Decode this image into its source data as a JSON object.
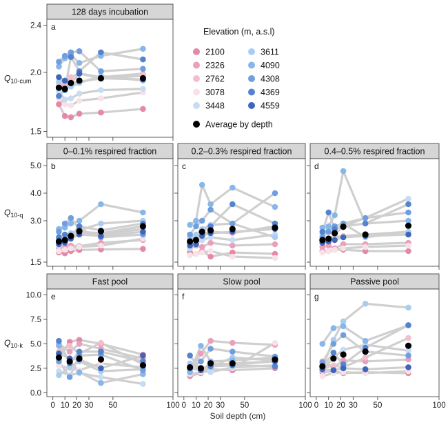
{
  "figure": {
    "xlabel": "Soil depth (cm)",
    "x_ticks": [
      0,
      10,
      20,
      30,
      50,
      100
    ],
    "line_color": "#cfcfcf",
    "average_color": "#000000",
    "strip_color": "#d6d6d6"
  },
  "legend": {
    "title": "Elevation (m, a.s.l)",
    "entries": [
      {
        "label": "2100",
        "color": "#e48aa8"
      },
      {
        "label": "2326",
        "color": "#eb9fba"
      },
      {
        "label": "2762",
        "color": "#f3bfcd"
      },
      {
        "label": "3078",
        "color": "#f8e2e8"
      },
      {
        "label": "3448",
        "color": "#c6dcf4"
      },
      {
        "label": "3611",
        "color": "#a9cdf2"
      },
      {
        "label": "4090",
        "color": "#86b6ea"
      },
      {
        "label": "4308",
        "color": "#6f9fe0"
      },
      {
        "label": "4369",
        "color": "#5483d0"
      },
      {
        "label": "4559",
        "color": "#3e66bd"
      }
    ],
    "average_label": "Average by depth"
  },
  "chart_data": [
    {
      "panel": "a",
      "type": "scatter",
      "title": "128 days incubation",
      "ylabel": "Q10-cum",
      "ylim": [
        1.45,
        2.45
      ],
      "yticks": [
        1.5,
        2.0,
        2.4
      ],
      "x": [
        5,
        10,
        15,
        22,
        40,
        75
      ],
      "series": [
        {
          "elev": "2100",
          "values": [
            1.73,
            1.63,
            1.62,
            1.65,
            1.66,
            1.69
          ]
        },
        {
          "elev": "2326",
          "values": [
            1.87,
            1.89,
            1.91,
            1.92,
            1.95,
            1.97
          ]
        },
        {
          "elev": "2762",
          "values": [
            1.9,
            1.91,
            1.96,
            1.99,
            1.96,
            1.99
          ]
        },
        {
          "elev": "3078",
          "values": [
            1.78,
            1.73,
            1.72,
            1.76,
            1.78,
            1.83
          ]
        },
        {
          "elev": "3448",
          "values": [
            1.84,
            1.77,
            1.78,
            1.82,
            1.85,
            1.86
          ]
        },
        {
          "elev": "3611",
          "values": [
            1.92,
            1.93,
            1.88,
            1.91,
            1.97,
            1.93
          ]
        },
        {
          "elev": "4090",
          "values": [
            2.05,
            2.12,
            2.15,
            2.08,
            2.14,
            2.2
          ]
        },
        {
          "elev": "4308",
          "values": [
            2.09,
            2.14,
            2.17,
            2.18,
            2.01,
            2.03
          ]
        },
        {
          "elev": "4369",
          "values": [
            1.8,
            1.85,
            2.13,
            2.01,
            2.17,
            2.11
          ]
        },
        {
          "elev": "4559",
          "values": [
            1.96,
            1.93,
            1.91,
            1.99,
            1.95,
            1.94
          ]
        }
      ],
      "average": [
        1.87,
        1.86,
        1.91,
        1.93,
        1.95,
        1.95
      ]
    },
    {
      "panel": "b",
      "type": "scatter",
      "title": "0–0.1% respired fraction",
      "ylabel": "Q10-q",
      "ylim": [
        1.35,
        5.25
      ],
      "yticks": [
        1.5,
        3.0,
        4.0,
        5.0
      ],
      "x": [
        5,
        10,
        15,
        22,
        40,
        75
      ],
      "series": [
        {
          "elev": "2100",
          "values": [
            1.85,
            1.82,
            1.9,
            1.94,
            1.96,
            1.98
          ]
        },
        {
          "elev": "2326",
          "values": [
            2.0,
            2.05,
            2.1,
            2.08,
            2.2,
            2.3
          ]
        },
        {
          "elev": "2762",
          "values": [
            2.2,
            2.25,
            2.4,
            2.55,
            2.5,
            2.7
          ]
        },
        {
          "elev": "3078",
          "values": [
            1.9,
            1.95,
            2.0,
            2.05,
            2.1,
            2.35
          ]
        },
        {
          "elev": "3448",
          "values": [
            2.1,
            2.3,
            2.5,
            2.6,
            2.55,
            2.8
          ]
        },
        {
          "elev": "3611",
          "values": [
            2.3,
            2.35,
            2.55,
            2.65,
            2.9,
            3.0
          ]
        },
        {
          "elev": "4090",
          "values": [
            2.7,
            2.75,
            2.9,
            3.0,
            3.6,
            3.3
          ]
        },
        {
          "elev": "4308",
          "values": [
            2.6,
            2.9,
            3.1,
            2.7,
            2.4,
            2.5
          ]
        },
        {
          "elev": "4369",
          "values": [
            2.4,
            2.5,
            2.45,
            2.8,
            2.65,
            2.9
          ]
        },
        {
          "elev": "4559",
          "values": [
            2.15,
            2.2,
            2.35,
            2.5,
            2.45,
            2.6
          ]
        }
      ],
      "average": [
        2.25,
        2.3,
        2.45,
        2.62,
        2.62,
        2.8
      ]
    },
    {
      "panel": "c",
      "type": "scatter",
      "title": "0.2–0.3% respired fraction",
      "ylabel": "",
      "ylim": [
        1.35,
        5.25
      ],
      "yticks": [
        1.5,
        3.0,
        4.0,
        5.0
      ],
      "x": [
        5,
        10,
        15,
        22,
        40,
        75
      ],
      "series": [
        {
          "elev": "2100",
          "values": [
            1.85,
            1.8,
            1.9,
            1.7,
            1.85,
            1.8
          ]
        },
        {
          "elev": "2326",
          "values": [
            2.0,
            2.1,
            2.05,
            2.2,
            2.1,
            2.15
          ]
        },
        {
          "elev": "2762",
          "values": [
            2.3,
            2.4,
            2.5,
            2.6,
            2.55,
            2.8
          ]
        },
        {
          "elev": "3078",
          "values": [
            1.75,
            1.8,
            1.85,
            1.9,
            1.7,
            1.65
          ]
        },
        {
          "elev": "3448",
          "values": [
            2.0,
            2.2,
            2.3,
            2.4,
            2.3,
            2.5
          ]
        },
        {
          "elev": "3611",
          "values": [
            2.4,
            2.5,
            2.7,
            2.85,
            2.9,
            2.4
          ]
        },
        {
          "elev": "4090",
          "values": [
            2.85,
            3.0,
            4.3,
            3.6,
            4.2,
            3.5
          ]
        },
        {
          "elev": "4308",
          "values": [
            2.5,
            2.8,
            3.0,
            3.4,
            2.9,
            4.0
          ]
        },
        {
          "elev": "4369",
          "values": [
            2.2,
            2.3,
            2.6,
            2.8,
            3.6,
            2.9
          ]
        },
        {
          "elev": "4559",
          "values": [
            2.1,
            2.15,
            2.45,
            2.55,
            2.6,
            2.7
          ]
        }
      ],
      "average": [
        2.25,
        2.3,
        2.6,
        2.65,
        2.7,
        2.75
      ]
    },
    {
      "panel": "d",
      "type": "scatter",
      "title": "0.4–0.5% respired fraction",
      "ylabel": "",
      "ylim": [
        1.35,
        5.25
      ],
      "yticks": [
        1.5,
        3.0,
        4.0,
        5.0
      ],
      "x": [
        5,
        10,
        15,
        22,
        40,
        75
      ],
      "series": [
        {
          "elev": "2100",
          "values": [
            1.9,
            1.9,
            1.95,
            1.95,
            1.9,
            1.9
          ]
        },
        {
          "elev": "2326",
          "values": [
            2.05,
            2.1,
            2.0,
            2.15,
            2.15,
            2.2
          ]
        },
        {
          "elev": "2762",
          "values": [
            2.3,
            2.35,
            2.4,
            2.45,
            2.5,
            2.6
          ]
        },
        {
          "elev": "3078",
          "values": [
            1.85,
            1.9,
            1.95,
            2.0,
            2.05,
            2.1
          ]
        },
        {
          "elev": "3448",
          "values": [
            2.2,
            2.3,
            2.5,
            2.8,
            3.1,
            3.8
          ]
        },
        {
          "elev": "3611",
          "values": [
            2.5,
            2.7,
            2.8,
            2.9,
            2.4,
            2.6
          ]
        },
        {
          "elev": "4090",
          "values": [
            2.75,
            2.8,
            3.2,
            4.8,
            2.9,
            3.0
          ]
        },
        {
          "elev": "4308",
          "values": [
            2.4,
            2.6,
            2.8,
            2.9,
            3.1,
            3.3
          ]
        },
        {
          "elev": "4369",
          "values": [
            2.6,
            3.3,
            2.7,
            2.8,
            2.9,
            3.6
          ]
        },
        {
          "elev": "4559",
          "values": [
            2.2,
            2.25,
            2.3,
            2.4,
            2.45,
            2.5
          ]
        }
      ],
      "average": [
        2.3,
        2.35,
        2.55,
        2.78,
        2.5,
        2.82
      ]
    },
    {
      "panel": "e",
      "type": "scatter",
      "title": "Fast pool",
      "ylabel": "Q10-k",
      "ylim": [
        -0.4,
        10.6
      ],
      "yticks": [
        0.0,
        2.5,
        5.0,
        7.5,
        10.0
      ],
      "x": [
        5,
        14,
        22,
        40,
        75
      ],
      "series": [
        {
          "elev": "2100",
          "values": [
            3.5,
            5.2,
            5.4,
            5.0,
            3.9
          ]
        },
        {
          "elev": "2326",
          "values": [
            5.0,
            4.2,
            5.0,
            4.5,
            3.5
          ]
        },
        {
          "elev": "2762",
          "values": [
            4.2,
            4.8,
            4.0,
            5.1,
            2.9
          ]
        },
        {
          "elev": "3078",
          "values": [
            2.8,
            2.5,
            2.3,
            3.0,
            2.6
          ]
        },
        {
          "elev": "3448",
          "values": [
            2.2,
            1.8,
            2.0,
            1.6,
            0.9
          ]
        },
        {
          "elev": "3611",
          "values": [
            1.8,
            2.6,
            3.2,
            2.2,
            2.4
          ]
        },
        {
          "elev": "4090",
          "values": [
            4.8,
            3.3,
            2.1,
            1.0,
            1.9
          ]
        },
        {
          "elev": "4308",
          "values": [
            3.2,
            1.6,
            3.8,
            3.9,
            2.3
          ]
        },
        {
          "elev": "4369",
          "values": [
            5.3,
            3.0,
            4.2,
            4.2,
            3.2
          ]
        },
        {
          "elev": "4559",
          "values": [
            4.0,
            3.5,
            3.4,
            2.5,
            3.8
          ]
        }
      ],
      "average": [
        3.6,
        3.2,
        3.5,
        3.4,
        2.8
      ]
    },
    {
      "panel": "f",
      "type": "scatter",
      "title": "Slow pool",
      "ylabel": "",
      "ylim": [
        -0.4,
        10.6
      ],
      "yticks": [
        0.0,
        2.5,
        5.0,
        7.5,
        10.0
      ],
      "x": [
        5,
        14,
        22,
        40,
        75
      ],
      "series": [
        {
          "elev": "2100",
          "values": [
            1.7,
            2.0,
            2.4,
            2.3,
            2.5
          ]
        },
        {
          "elev": "2326",
          "values": [
            2.2,
            4.0,
            5.3,
            5.1,
            4.9
          ]
        },
        {
          "elev": "2762",
          "values": [
            2.9,
            2.4,
            2.8,
            3.0,
            3.2
          ]
        },
        {
          "elev": "3078",
          "values": [
            1.9,
            2.1,
            2.2,
            2.5,
            5.1
          ]
        },
        {
          "elev": "3448",
          "values": [
            2.4,
            2.5,
            2.1,
            2.6,
            2.8
          ]
        },
        {
          "elev": "3611",
          "values": [
            3.0,
            2.4,
            2.6,
            3.6,
            3.3
          ]
        },
        {
          "elev": "4090",
          "values": [
            2.1,
            4.8,
            3.2,
            3.3,
            3.6
          ]
        },
        {
          "elev": "4308",
          "values": [
            2.6,
            3.2,
            4.5,
            4.2,
            3.7
          ]
        },
        {
          "elev": "4369",
          "values": [
            3.8,
            2.3,
            2.7,
            2.8,
            2.7
          ]
        },
        {
          "elev": "4559",
          "values": [
            2.5,
            2.3,
            3.0,
            2.9,
            3.2
          ]
        }
      ],
      "average": [
        2.6,
        2.5,
        3.0,
        3.0,
        3.4
      ]
    },
    {
      "panel": "g",
      "type": "scatter",
      "title": "Passive pool",
      "ylabel": "",
      "ylim": [
        -0.4,
        10.6
      ],
      "yticks": [
        0.0,
        2.5,
        5.0,
        7.5,
        10.0
      ],
      "x": [
        5,
        14,
        22,
        40,
        75
      ],
      "series": [
        {
          "elev": "2100",
          "values": [
            2.1,
            2.2,
            2.0,
            2.1,
            2.0
          ]
        },
        {
          "elev": "2326",
          "values": [
            3.2,
            2.6,
            3.3,
            3.2,
            3.4
          ]
        },
        {
          "elev": "2762",
          "values": [
            2.5,
            2.8,
            2.6,
            3.6,
            5.6
          ]
        },
        {
          "elev": "3078",
          "values": [
            1.7,
            2.0,
            2.1,
            2.0,
            2.2
          ]
        },
        {
          "elev": "3448",
          "values": [
            2.3,
            3.6,
            4.4,
            4.9,
            4.3
          ]
        },
        {
          "elev": "3611",
          "values": [
            2.6,
            5.4,
            7.3,
            9.1,
            8.7
          ]
        },
        {
          "elev": "4090",
          "values": [
            5.0,
            6.6,
            6.8,
            5.3,
            6.9
          ]
        },
        {
          "elev": "4308",
          "values": [
            3.1,
            5.0,
            5.9,
            4.2,
            3.8
          ]
        },
        {
          "elev": "4369",
          "values": [
            2.6,
            4.1,
            2.9,
            4.6,
            6.9
          ]
        },
        {
          "elev": "4559",
          "values": [
            2.4,
            2.3,
            2.5,
            2.4,
            2.6
          ]
        }
      ],
      "average": [
        2.7,
        3.5,
        3.9,
        4.2,
        4.8
      ]
    }
  ]
}
